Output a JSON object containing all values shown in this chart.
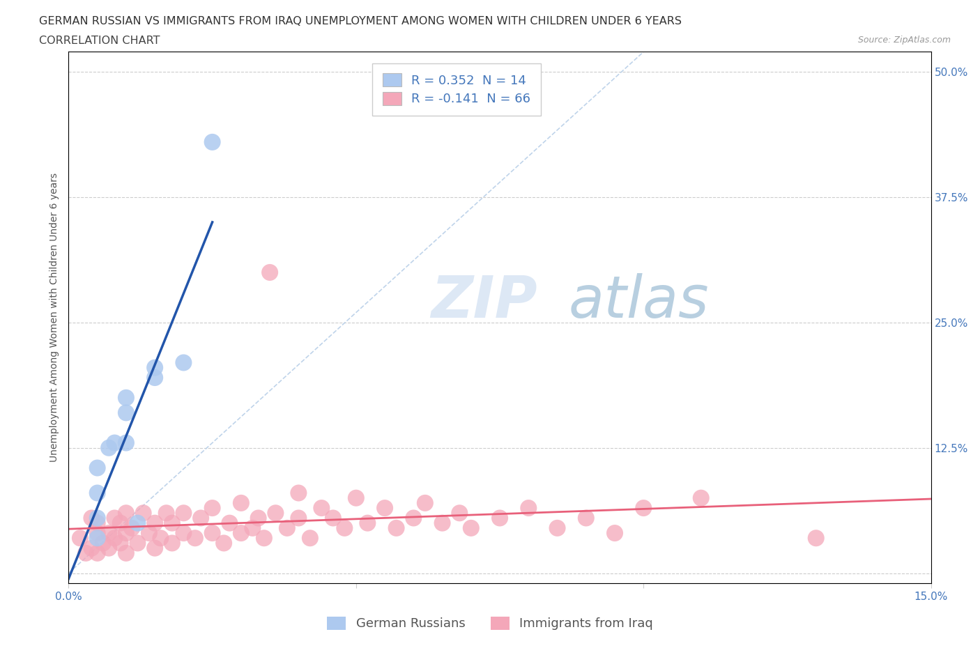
{
  "title_line1": "GERMAN RUSSIAN VS IMMIGRANTS FROM IRAQ UNEMPLOYMENT AMONG WOMEN WITH CHILDREN UNDER 6 YEARS",
  "title_line2": "CORRELATION CHART",
  "source": "Source: ZipAtlas.com",
  "ylabel": "Unemployment Among Women with Children Under 6 years",
  "watermark_zip": "ZIP",
  "watermark_atlas": "atlas",
  "xmin": 0.0,
  "xmax": 0.15,
  "ymin": -0.01,
  "ymax": 0.52,
  "ytick_labels": [
    "",
    "12.5%",
    "25.0%",
    "37.5%",
    "50.0%"
  ],
  "ytick_positions": [
    0.0,
    0.125,
    0.25,
    0.375,
    0.5
  ],
  "gr_R": 0.352,
  "gr_N": 14,
  "iraq_R": -0.141,
  "iraq_N": 66,
  "gr_color": "#adc9ef",
  "iraq_color": "#f4a7b9",
  "gr_edge_color": "#adc9ef",
  "iraq_edge_color": "#f4a7b9",
  "gr_line_color": "#2255aa",
  "iraq_line_color": "#e8607a",
  "diagonal_color": "#b8cfe8",
  "legend_label_gr": "German Russians",
  "legend_label_iraq": "Immigrants from Iraq",
  "gr_scatter_x": [
    0.005,
    0.005,
    0.005,
    0.005,
    0.007,
    0.008,
    0.01,
    0.01,
    0.01,
    0.012,
    0.015,
    0.015,
    0.02,
    0.025
  ],
  "gr_scatter_y": [
    0.035,
    0.055,
    0.08,
    0.105,
    0.125,
    0.13,
    0.13,
    0.16,
    0.175,
    0.05,
    0.195,
    0.205,
    0.21,
    0.43
  ],
  "iraq_scatter_x": [
    0.002,
    0.003,
    0.004,
    0.004,
    0.005,
    0.005,
    0.005,
    0.006,
    0.007,
    0.007,
    0.008,
    0.008,
    0.009,
    0.009,
    0.01,
    0.01,
    0.01,
    0.011,
    0.012,
    0.013,
    0.014,
    0.015,
    0.015,
    0.016,
    0.017,
    0.018,
    0.018,
    0.02,
    0.02,
    0.022,
    0.023,
    0.025,
    0.025,
    0.027,
    0.028,
    0.03,
    0.03,
    0.032,
    0.033,
    0.034,
    0.035,
    0.036,
    0.038,
    0.04,
    0.04,
    0.042,
    0.044,
    0.046,
    0.048,
    0.05,
    0.052,
    0.055,
    0.057,
    0.06,
    0.062,
    0.065,
    0.068,
    0.07,
    0.075,
    0.08,
    0.085,
    0.09,
    0.095,
    0.1,
    0.11,
    0.13
  ],
  "iraq_scatter_y": [
    0.035,
    0.02,
    0.025,
    0.055,
    0.02,
    0.04,
    0.05,
    0.03,
    0.025,
    0.04,
    0.035,
    0.055,
    0.03,
    0.05,
    0.02,
    0.04,
    0.06,
    0.045,
    0.03,
    0.06,
    0.04,
    0.025,
    0.05,
    0.035,
    0.06,
    0.03,
    0.05,
    0.04,
    0.06,
    0.035,
    0.055,
    0.04,
    0.065,
    0.03,
    0.05,
    0.04,
    0.07,
    0.045,
    0.055,
    0.035,
    0.3,
    0.06,
    0.045,
    0.055,
    0.08,
    0.035,
    0.065,
    0.055,
    0.045,
    0.075,
    0.05,
    0.065,
    0.045,
    0.055,
    0.07,
    0.05,
    0.06,
    0.045,
    0.055,
    0.065,
    0.045,
    0.055,
    0.04,
    0.065,
    0.075,
    0.035
  ],
  "title_fontsize": 11.5,
  "axis_label_fontsize": 10,
  "tick_fontsize": 11,
  "legend_fontsize": 13,
  "background_color": "#ffffff",
  "grid_color": "#cccccc"
}
